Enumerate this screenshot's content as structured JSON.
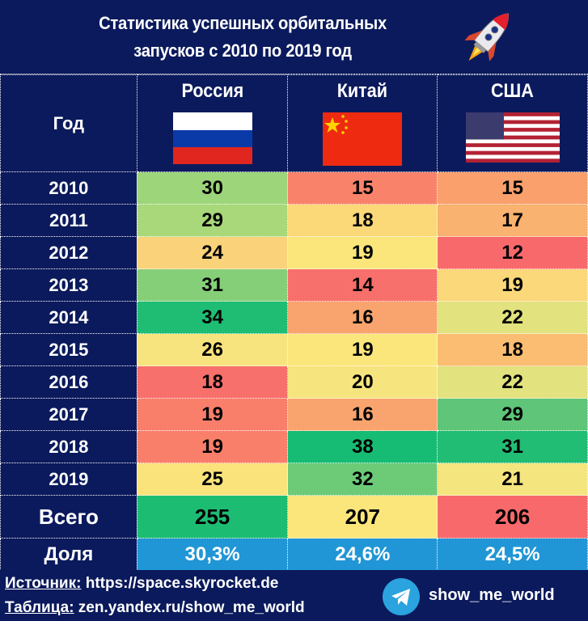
{
  "title": {
    "line1": "Статистика успешных орбитальных",
    "line2": "запусков с 2010 по 2019 год",
    "icon": "rocket-icon"
  },
  "table": {
    "year_header": "Год",
    "columns": [
      {
        "name": "Россия",
        "flag": "russia-flag"
      },
      {
        "name": "Китай",
        "flag": "china-flag"
      },
      {
        "name": "США",
        "flag": "usa-flag"
      }
    ],
    "rows": [
      {
        "year": "2010",
        "values": [
          "30",
          "15",
          "15"
        ],
        "colors": [
          "#9dd57a",
          "#f9836a",
          "#f9a06c"
        ]
      },
      {
        "year": "2011",
        "values": [
          "29",
          "18",
          "17"
        ],
        "colors": [
          "#a8d879",
          "#fcd978",
          "#f9b26f"
        ]
      },
      {
        "year": "2012",
        "values": [
          "24",
          "19",
          "12"
        ],
        "colors": [
          "#fad27a",
          "#fbe67c",
          "#f8696b"
        ]
      },
      {
        "year": "2013",
        "values": [
          "31",
          "14",
          "19"
        ],
        "colors": [
          "#86cf79",
          "#f8706b",
          "#fbd87a"
        ]
      },
      {
        "year": "2014",
        "values": [
          "34",
          "16",
          "22"
        ],
        "colors": [
          "#1fbd74",
          "#f9a46e",
          "#e2e27f"
        ]
      },
      {
        "year": "2015",
        "values": [
          "26",
          "19",
          "18"
        ],
        "colors": [
          "#f8e47e",
          "#fbe67c",
          "#fbbd72"
        ]
      },
      {
        "year": "2016",
        "values": [
          "18",
          "20",
          "22"
        ],
        "colors": [
          "#f8706b",
          "#f6e57e",
          "#e2e27f"
        ]
      },
      {
        "year": "2017",
        "values": [
          "19",
          "16",
          "29"
        ],
        "colors": [
          "#f97f6b",
          "#f9a46e",
          "#5fc578"
        ]
      },
      {
        "year": "2018",
        "values": [
          "19",
          "38",
          "31"
        ],
        "colors": [
          "#f97f6b",
          "#16bc73",
          "#22bd74"
        ]
      },
      {
        "year": "2019",
        "values": [
          "25",
          "32",
          "21"
        ],
        "colors": [
          "#fbe37c",
          "#6dcb78",
          "#f5e57e"
        ]
      }
    ],
    "total": {
      "label": "Всего",
      "values": [
        "255",
        "207",
        "206"
      ],
      "colors": [
        "#1cbd73",
        "#fbe67c",
        "#f8696b"
      ]
    },
    "share": {
      "label": "Доля",
      "values": [
        "30,3%",
        "24,6%",
        "24,5%"
      ],
      "color": "#2196d6"
    }
  },
  "footer": {
    "source_label": "Источник:",
    "source_value": " https://space.skyrocket.de",
    "table_label": "Таблица:",
    "table_value": " zen.yandex.ru/show_me_world",
    "telegram_icon": "telegram-icon",
    "telegram_name": "show_me_world"
  },
  "chart_data": {
    "type": "table",
    "title": "Статистика успешных орбитальных запусков с 2010 по 2019 год",
    "columns": [
      "Год",
      "Россия",
      "Китай",
      "США"
    ],
    "categories": [
      "2010",
      "2011",
      "2012",
      "2013",
      "2014",
      "2015",
      "2016",
      "2017",
      "2018",
      "2019"
    ],
    "series": [
      {
        "name": "Россия",
        "values": [
          30,
          29,
          24,
          31,
          34,
          26,
          18,
          19,
          19,
          25
        ]
      },
      {
        "name": "Китай",
        "values": [
          15,
          18,
          19,
          14,
          16,
          19,
          20,
          16,
          38,
          32
        ]
      },
      {
        "name": "США",
        "values": [
          15,
          17,
          12,
          19,
          22,
          18,
          22,
          29,
          31,
          21
        ]
      }
    ],
    "totals": {
      "Россия": 255,
      "Китай": 207,
      "США": 206
    },
    "shares": {
      "Россия": "30,3%",
      "Китай": "24,6%",
      "США": "24,5%"
    },
    "color_scale": "heatmap per column (red=low, yellow=mid, green=high)"
  }
}
